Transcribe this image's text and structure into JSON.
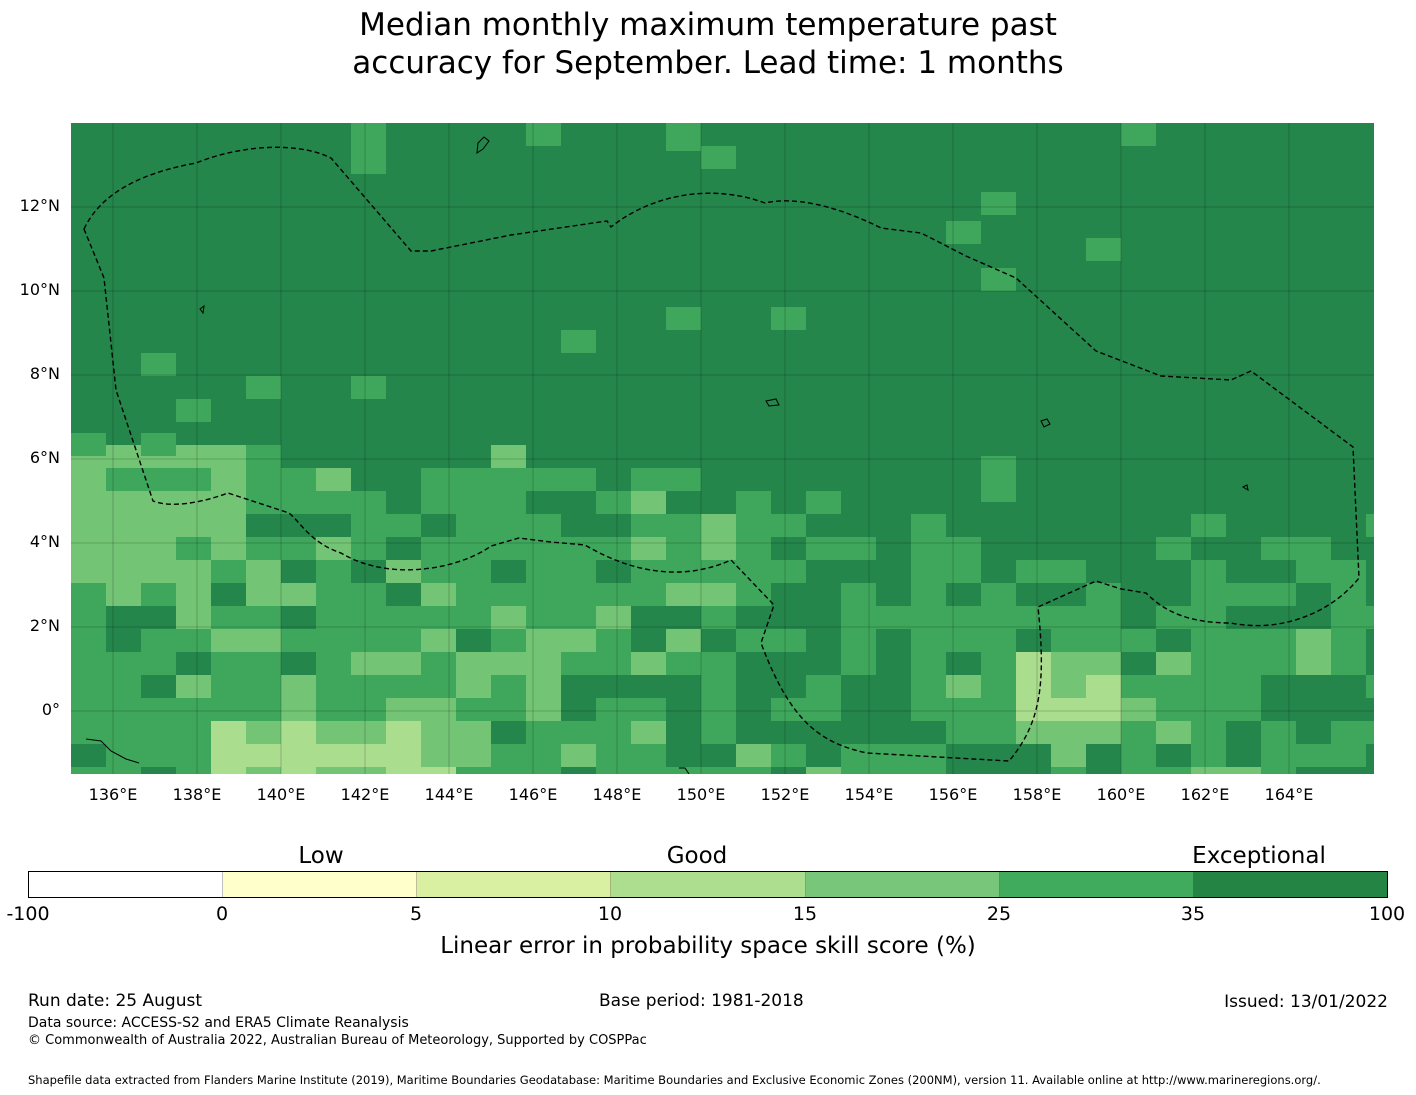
{
  "title": {
    "line1": "Median monthly maximum temperature past",
    "line2": "accuracy for September. Lead time: 1 months"
  },
  "map": {
    "lat_labels": [
      "12°N",
      "10°N",
      "8°N",
      "6°N",
      "4°N",
      "2°N",
      "0°"
    ],
    "lon_labels": [
      "136°E",
      "138°E",
      "140°E",
      "142°E",
      "144°E",
      "146°E",
      "148°E",
      "150°E",
      "152°E",
      "154°E",
      "156°E",
      "158°E",
      "160°E",
      "162°E",
      "164°E"
    ],
    "lon_range": [
      135.0,
      166.0
    ],
    "lat_range": [
      -1.5,
      14.0
    ],
    "cell_size_deg": [
      0.833,
      0.556
    ],
    "skill_classes": [
      "25-35",
      "35-100",
      "15-25",
      "10-15"
    ],
    "zone_boundary": "dashed black line (EEZ)"
  },
  "colorbar": {
    "categories": [
      "Low",
      "Good",
      "Exceptional"
    ],
    "ticks": [
      "-100",
      "0",
      "5",
      "10",
      "15",
      "25",
      "35",
      "100"
    ],
    "colors": [
      "#ffffff",
      "#ffffcc",
      "#d9f0a3",
      "#addd8e",
      "#78c679",
      "#41ab5d",
      "#238443"
    ],
    "label": "Linear error in probability space skill score (%)"
  },
  "footer": {
    "run_date": "Run date: 25 August",
    "base_period": "Base period: 1981-2018",
    "issued": "Issued: 13/01/2022",
    "data_source": "Data source: ACCESS-S2 and ERA5 Climate Reanalysis",
    "copyright": "© Commonwealth of Australia 2022, Australian Bureau of Meteorology, Supported by COSPPac",
    "shapefile": "Shapefile data extracted from Flanders Marine Institute (2019), Maritime Boundaries Geodatabase: Maritime Boundaries and Exclusive Economic Zones (200NM), version 11. Available online at http://www.marineregions.org/."
  }
}
